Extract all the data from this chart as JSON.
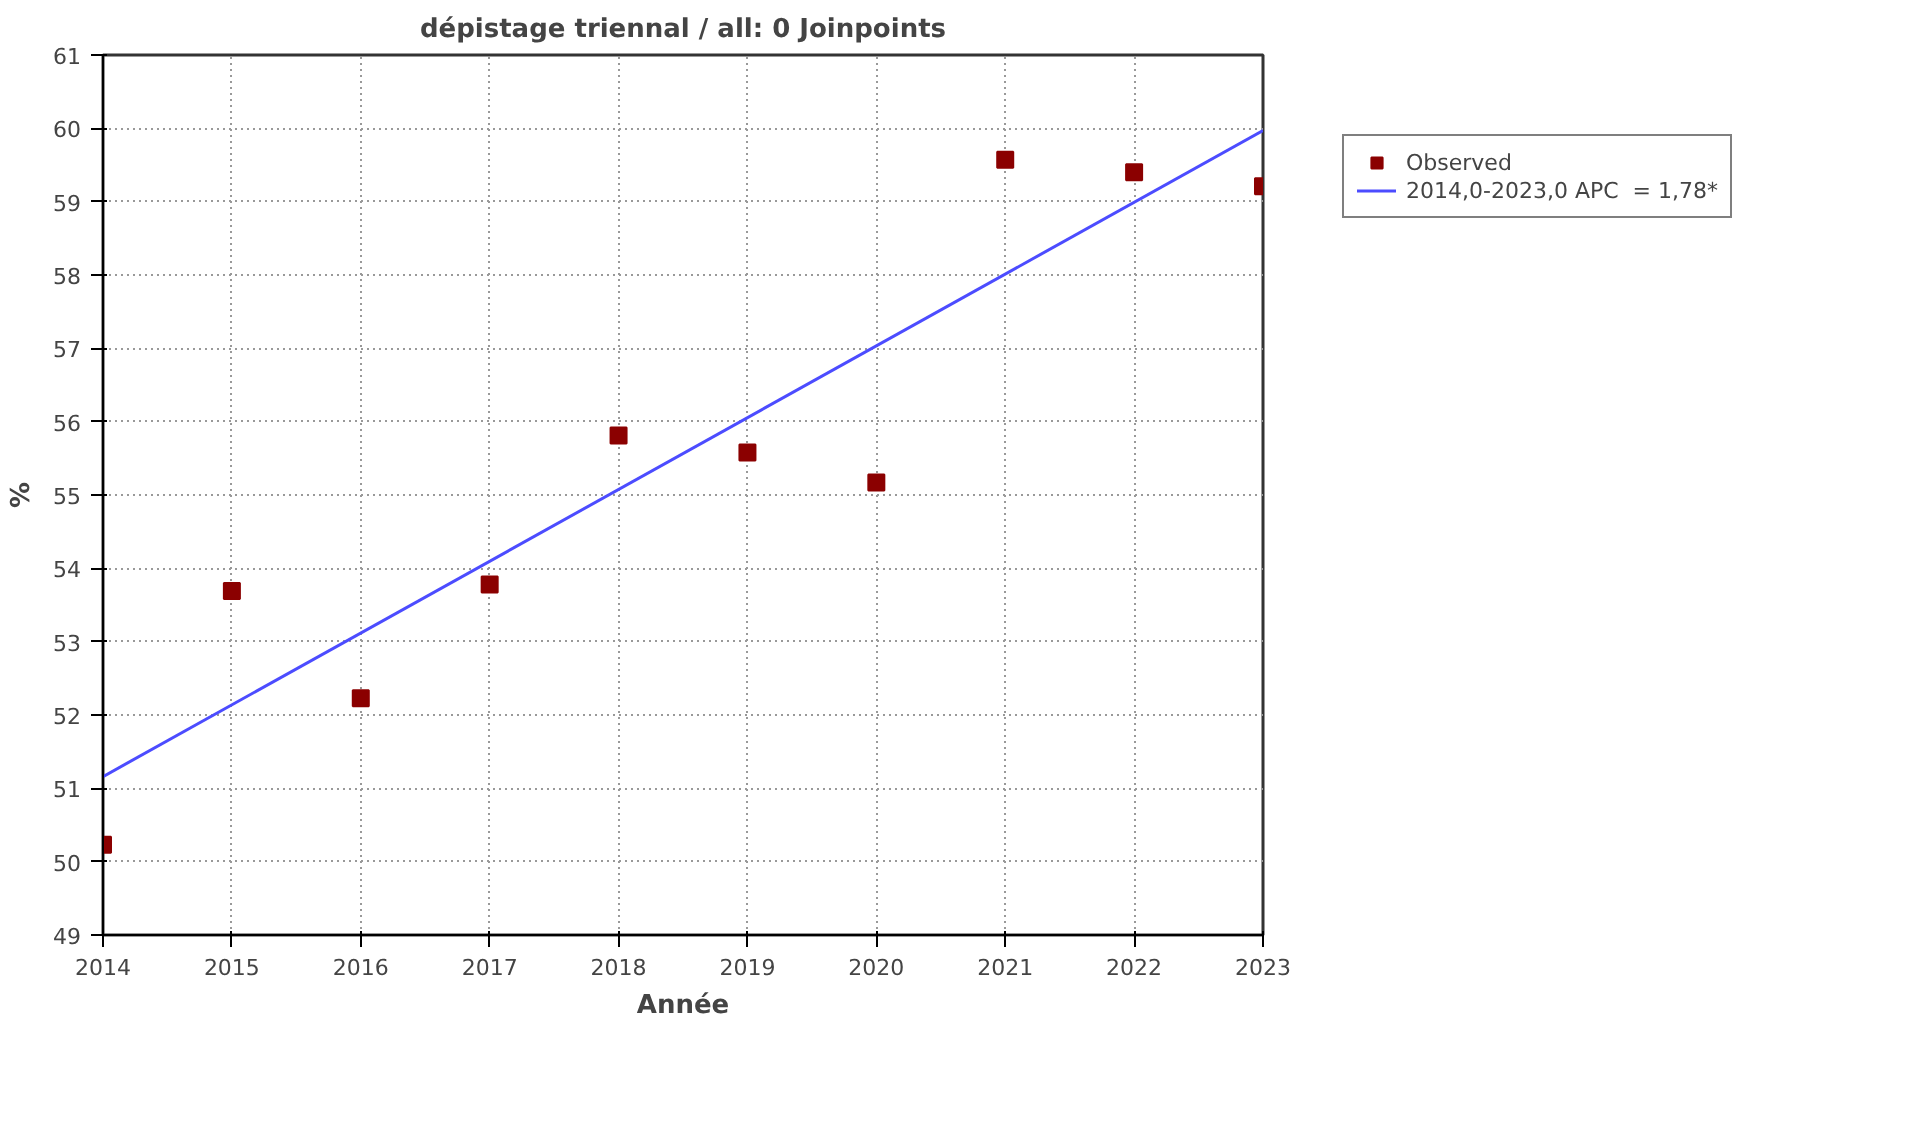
{
  "chart_data": {
    "type": "scatter",
    "title": "dépistage triennal / all: 0 Joinpoints",
    "xlabel": "Année",
    "ylabel": "%",
    "x": [
      2014,
      2015,
      2016,
      2017,
      2018,
      2019,
      2020,
      2021,
      2022,
      2023
    ],
    "series": [
      {
        "name": "Observed",
        "color": "#8b0000",
        "marker": "square",
        "values": [
          50.23,
          53.69,
          52.23,
          53.78,
          55.81,
          55.58,
          55.17,
          59.57,
          59.4,
          59.21
        ]
      },
      {
        "name": "2014,0-2023,0 APC  = 1,78*",
        "type": "line",
        "color": "#4c4cff",
        "line_style": "solid",
        "x": [
          2014,
          2023
        ],
        "values": [
          51.16,
          59.97
        ]
      }
    ],
    "xlim": [
      2014,
      2023
    ],
    "ylim": [
      49,
      61
    ],
    "xticks": [
      2014,
      2015,
      2016,
      2017,
      2018,
      2019,
      2020,
      2021,
      2022,
      2023
    ],
    "yticks": [
      49,
      50,
      51,
      52,
      53,
      54,
      55,
      56,
      57,
      58,
      59,
      60,
      61
    ],
    "grid": true,
    "legend": "top right"
  }
}
